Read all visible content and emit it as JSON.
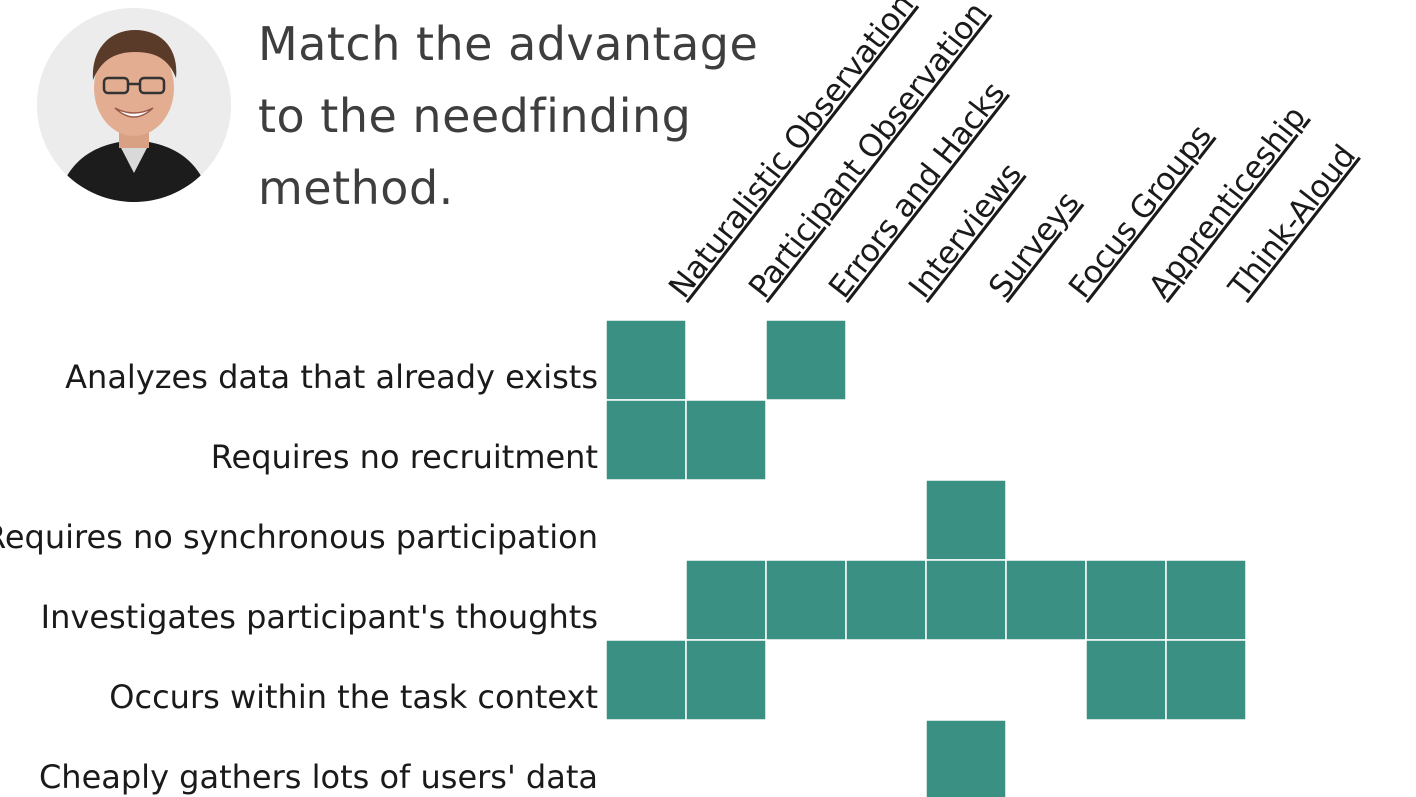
{
  "title_lines": [
    "Match the advantage",
    "to the needfinding",
    "method."
  ],
  "matrix": {
    "columns": [
      "Naturalistic Observation",
      "Participant Observation",
      "Errors and Hacks",
      "Interviews",
      "Surveys",
      "Focus Groups",
      "Apprenticeship",
      "Think-Aloud"
    ],
    "rows": [
      "Analyzes data that already exists",
      "Requires no recruitment",
      "Requires no synchronous participation",
      "Investigates participant's thoughts",
      "Occurs within the task context",
      "Cheaply gathers lots of users' data"
    ],
    "filled": [
      [
        1,
        0,
        1,
        0,
        0,
        0,
        0,
        0
      ],
      [
        1,
        1,
        0,
        0,
        0,
        0,
        0,
        0
      ],
      [
        0,
        0,
        0,
        0,
        1,
        0,
        0,
        0
      ],
      [
        0,
        1,
        1,
        1,
        1,
        1,
        1,
        1
      ],
      [
        1,
        1,
        0,
        0,
        0,
        0,
        1,
        1
      ],
      [
        0,
        0,
        0,
        0,
        1,
        0,
        0,
        0
      ]
    ],
    "fill_color": "#3a9082",
    "text_color": "#1a1a1a"
  },
  "avatar": {
    "icon": "presenter-photo"
  }
}
